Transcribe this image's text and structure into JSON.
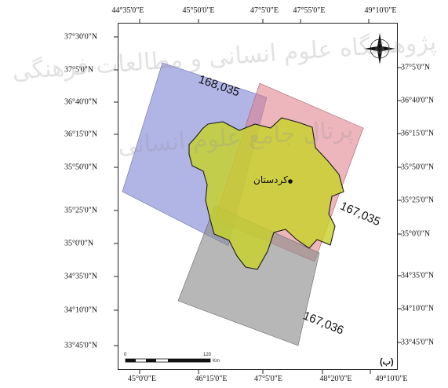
{
  "axes": {
    "top": [
      "44°35'0\"E",
      "45°50'0\"E",
      "47°5'0\"E",
      "47°55'0\"E",
      "49°10'0\"E"
    ],
    "bottom": [
      "45°0'0\"E",
      "46°15'0\"E",
      "47°5'0\"E",
      "48°20'0\"E",
      "49°10'0\"E"
    ],
    "left": [
      "37°30'0\"N",
      "37°5'0\"N",
      "36°40'0\"N",
      "36°15'0\"N",
      "35°50'0\"N",
      "35°25'0\"N",
      "35°0'0\"N",
      "34°35'0\"N",
      "34°10'0\"N",
      "33°45'0\"N"
    ],
    "right": [
      "37°5'0\"N",
      "36°40'0\"N",
      "36°15'0\"N",
      "35°50'0\"N",
      "35°25'0\"N",
      "35°0'0\"N",
      "34°35'0\"N",
      "34°10'0\"N",
      "33°45'0\"N"
    ]
  },
  "scenes": [
    {
      "id": "168,035",
      "color": "#7f88d6"
    },
    {
      "id": "167,035",
      "color": "#e0808c"
    },
    {
      "id": "167,036",
      "color": "#8a8a8a"
    }
  ],
  "province": {
    "color": "#c7d22a",
    "city_label": "کردستان"
  },
  "scale_bar": {
    "start": "0",
    "end": "120",
    "unit": "Km"
  },
  "panel_label": "(ب)",
  "watermark": {
    "line1": "پژوهشگاه علوم انسانی و مطالعات فرهنگی",
    "line2": "پرتال جامع علوم انسانی"
  }
}
